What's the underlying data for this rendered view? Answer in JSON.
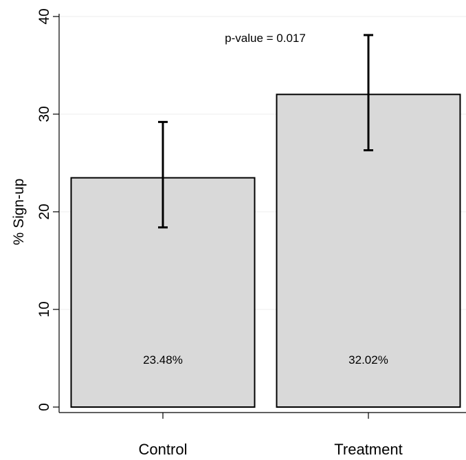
{
  "chart_data": {
    "type": "bar",
    "title": "",
    "xlabel": "",
    "ylabel": "% Sign-up",
    "categories": [
      "Control",
      "Treatment"
    ],
    "values": [
      23.48,
      32.02
    ],
    "value_labels": [
      "23.48%",
      "32.02%"
    ],
    "error_low": [
      18.4,
      26.3
    ],
    "error_high": [
      29.2,
      38.1
    ],
    "ylim": [
      0,
      40
    ],
    "yticks": [
      0,
      10,
      20,
      30,
      40
    ],
    "ytick_labels": [
      "0",
      "10",
      "20",
      "30",
      "40"
    ],
    "grid": true,
    "legend": "none",
    "annotation": "p-value = 0.017",
    "colors": {
      "bar_fill": "#d9d9d9",
      "bar_stroke": "#000000",
      "grid": "#eeeeee",
      "axis": "#000000"
    }
  }
}
